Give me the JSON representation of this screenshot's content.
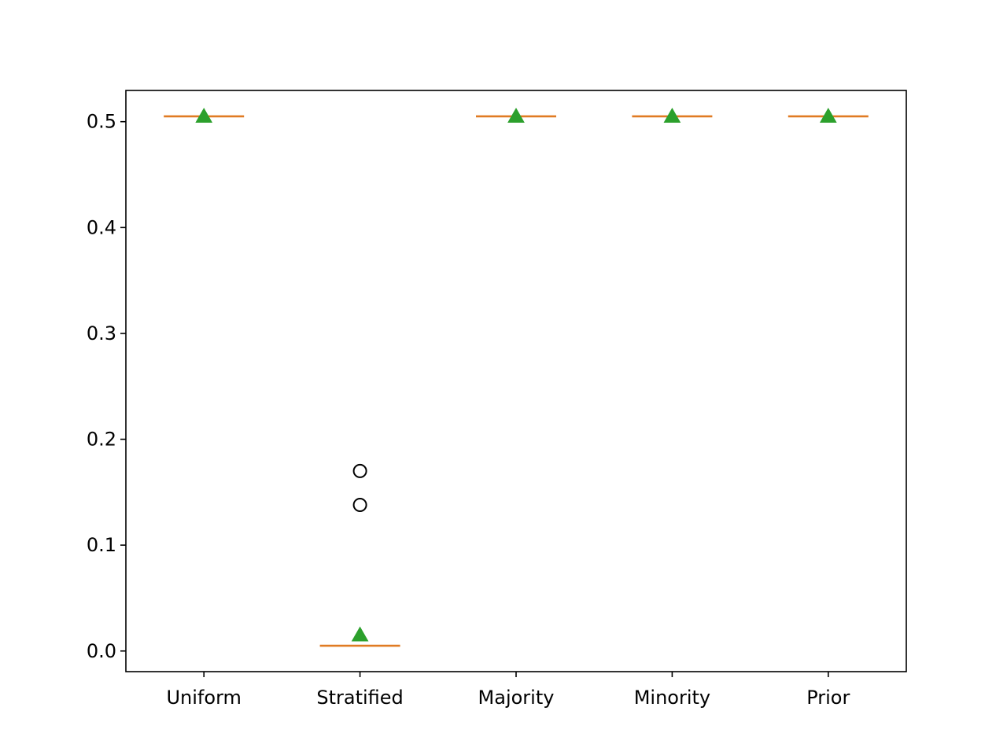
{
  "chart_data": {
    "type": "box",
    "title": "",
    "xlabel": "",
    "ylabel": "",
    "categories": [
      "Uniform",
      "Stratified",
      "Majority",
      "Minority",
      "Prior"
    ],
    "boxes": [
      {
        "category": "Uniform",
        "median": 0.505,
        "q1": 0.505,
        "q3": 0.505,
        "whisker_low": 0.505,
        "whisker_high": 0.505,
        "mean": 0.505,
        "outliers": []
      },
      {
        "category": "Stratified",
        "median": 0.005,
        "q1": 0.005,
        "q3": 0.005,
        "whisker_low": 0.005,
        "whisker_high": 0.005,
        "mean": 0.015,
        "outliers": [
          0.17,
          0.138
        ]
      },
      {
        "category": "Majority",
        "median": 0.505,
        "q1": 0.505,
        "q3": 0.505,
        "whisker_low": 0.505,
        "whisker_high": 0.505,
        "mean": 0.505,
        "outliers": []
      },
      {
        "category": "Minority",
        "median": 0.505,
        "q1": 0.505,
        "q3": 0.505,
        "whisker_low": 0.505,
        "whisker_high": 0.505,
        "mean": 0.505,
        "outliers": []
      },
      {
        "category": "Prior",
        "median": 0.505,
        "q1": 0.505,
        "q3": 0.505,
        "whisker_low": 0.505,
        "whisker_high": 0.505,
        "mean": 0.505,
        "outliers": []
      }
    ],
    "y_ticks": [
      0.0,
      0.1,
      0.2,
      0.3,
      0.4,
      0.5
    ],
    "y_tick_labels": [
      "0.0",
      "0.1",
      "0.2",
      "0.3",
      "0.4",
      "0.5"
    ],
    "ylim": [
      -0.0195,
      0.5295
    ],
    "grid": false,
    "colors": {
      "median": "#e07b23",
      "mean_marker": "#2ca02c",
      "outlier_edge": "#000000",
      "axes": "#000000"
    }
  }
}
